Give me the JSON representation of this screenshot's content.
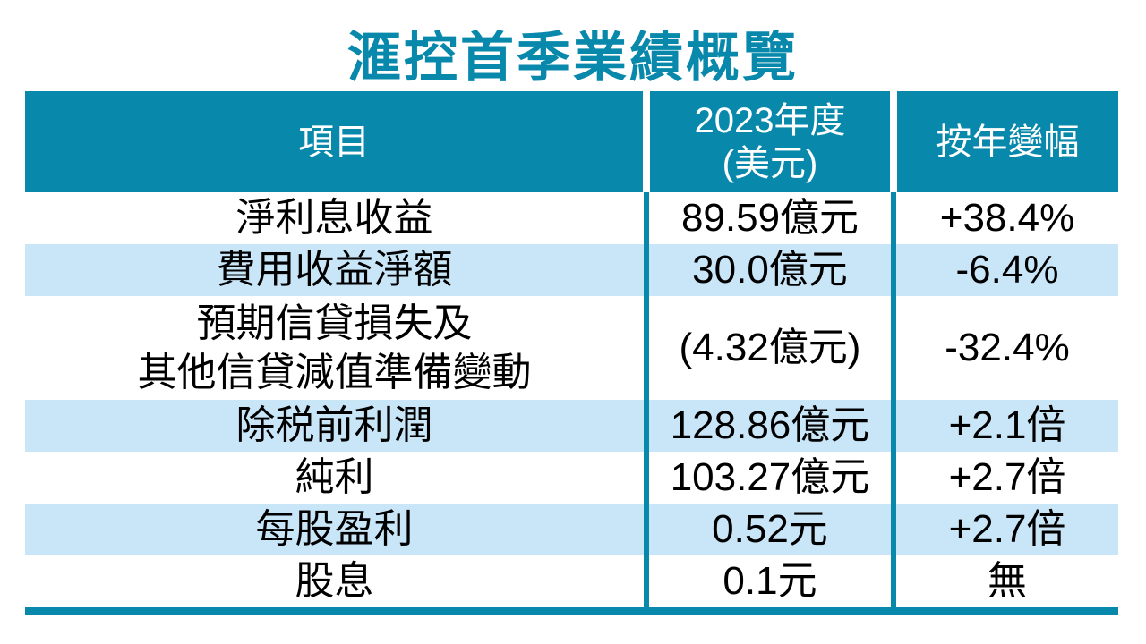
{
  "title": "滙控首季業績概覽",
  "colors": {
    "accent_teal": "#0889AC",
    "row_alt_blue": "#C9E6F8",
    "header_text": "#FFFFFF",
    "body_text": "#000000"
  },
  "table": {
    "header": {
      "item": "項目",
      "period": "2023年度\n(美元)",
      "change": "按年變幅"
    },
    "rows": [
      {
        "item": "淨利息收益",
        "value": "89.59億元",
        "change": "+38.4%"
      },
      {
        "item": "費用收益淨額",
        "value": "30.0億元",
        "change": "-6.4%"
      },
      {
        "item": "預期信貸損失及\n其他信貸減值準備變動",
        "value": "(4.32億元)",
        "change": "-32.4%"
      },
      {
        "item": "除税前利潤",
        "value": "128.86億元",
        "change": "+2.1倍"
      },
      {
        "item": "純利",
        "value": "103.27億元",
        "change": "+2.7倍"
      },
      {
        "item": "每股盈利",
        "value": "0.52元",
        "change": "+2.7倍"
      },
      {
        "item": "股息",
        "value": "0.1元",
        "change": "無"
      }
    ]
  },
  "chart_data": {
    "type": "table",
    "title": "滙控首季業績概覽",
    "columns": [
      "項目",
      "2023年度(美元)",
      "按年變幅"
    ],
    "rows": [
      [
        "淨利息收益",
        "89.59億元",
        "+38.4%"
      ],
      [
        "費用收益淨額",
        "30.0億元",
        "-6.4%"
      ],
      [
        "預期信貸損失及其他信貸減值準備變動",
        "(4.32億元)",
        "-32.4%"
      ],
      [
        "除税前利潤",
        "128.86億元",
        "+2.1倍"
      ],
      [
        "純利",
        "103.27億元",
        "+2.7倍"
      ],
      [
        "每股盈利",
        "0.52元",
        "+2.7倍"
      ],
      [
        "股息",
        "0.1元",
        "無"
      ]
    ],
    "layout": {
      "header_background": "#0889AC",
      "alternating_row_background": "#C9E6F8",
      "gridlines": "vertical-only",
      "bottom_rule": true
    }
  }
}
